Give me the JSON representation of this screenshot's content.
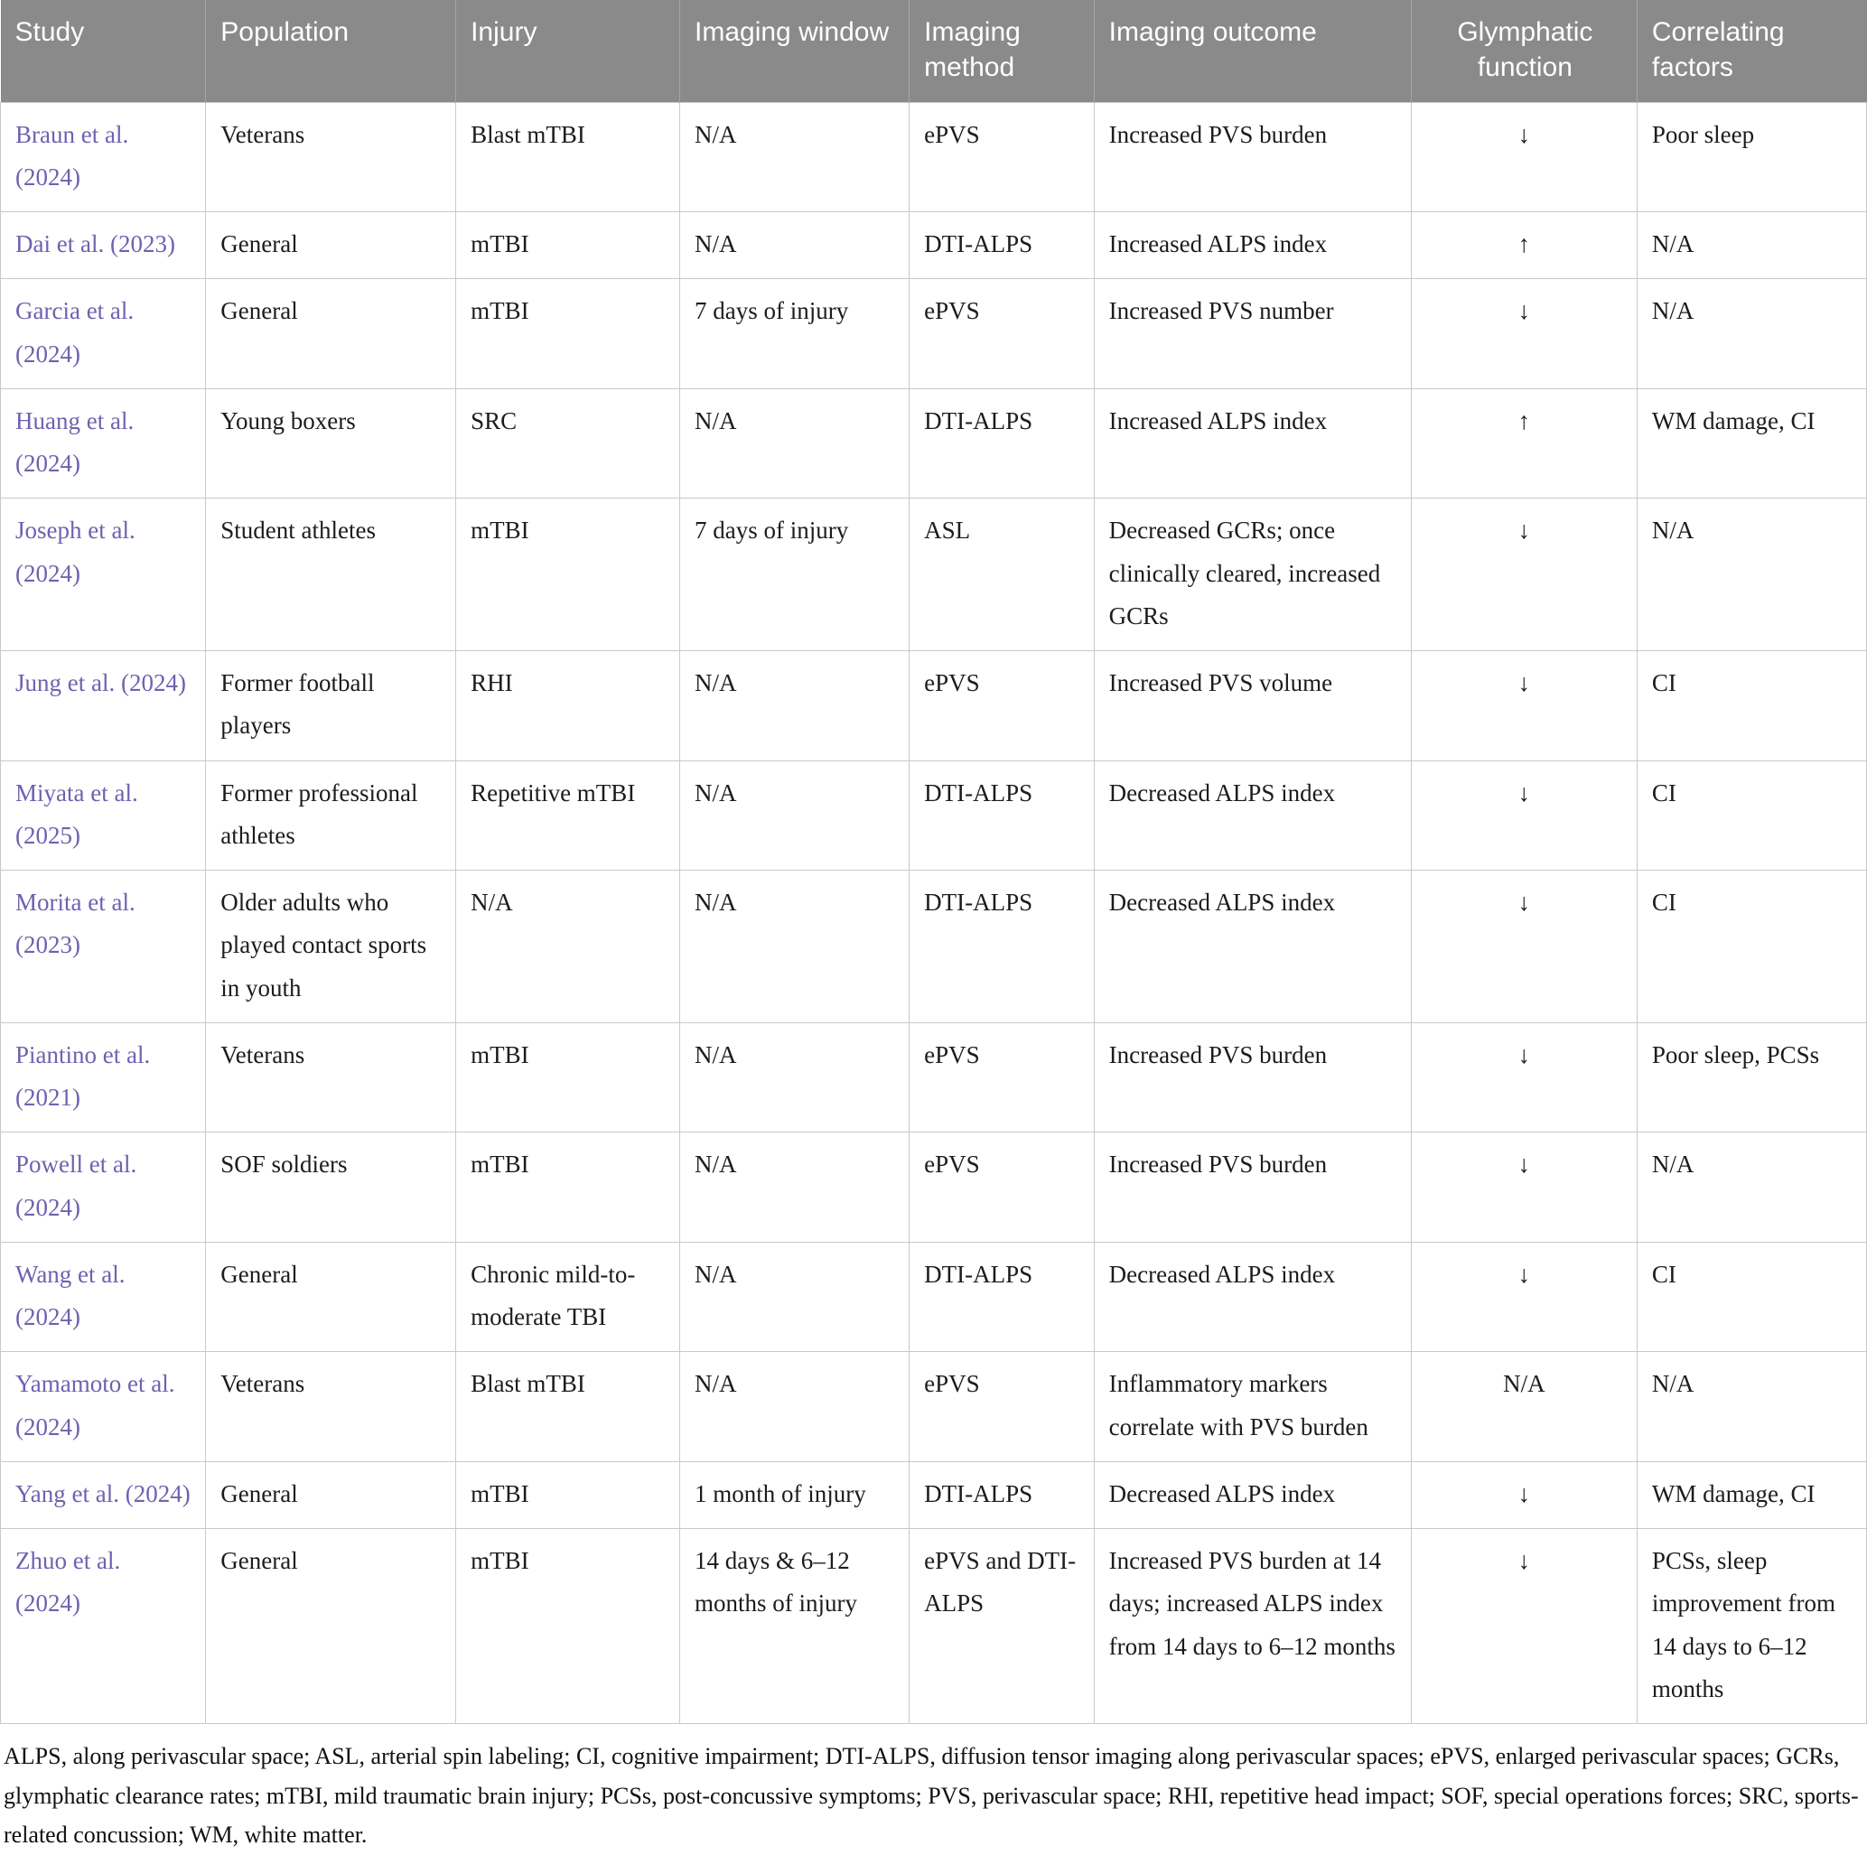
{
  "colors": {
    "header-bg": "#8a8a8a",
    "link": "#6e62b0",
    "grid": "#c9c9c9"
  },
  "table": {
    "columns": [
      {
        "key": "study",
        "label": "Study",
        "align": "left"
      },
      {
        "key": "population",
        "label": "Population",
        "align": "left"
      },
      {
        "key": "injury",
        "label": "Injury",
        "align": "left"
      },
      {
        "key": "imaging_window",
        "label": "Imaging window",
        "align": "left"
      },
      {
        "key": "imaging_method",
        "label": "Imaging method",
        "align": "left"
      },
      {
        "key": "imaging_outcome",
        "label": "Imaging outcome",
        "align": "left"
      },
      {
        "key": "glymphatic_function",
        "label": "Glymphatic function",
        "align": "center"
      },
      {
        "key": "correlating_factors",
        "label": "Correlating factors",
        "align": "left"
      }
    ],
    "rows": [
      {
        "study": "Braun et al. (2024)",
        "population": "Veterans",
        "injury": "Blast mTBI",
        "imaging_window": "N/A",
        "imaging_method": "ePVS",
        "imaging_outcome": "Increased PVS burden",
        "glymphatic_function": "↓",
        "correlating_factors": "Poor sleep"
      },
      {
        "study": "Dai et al. (2023)",
        "population": "General",
        "injury": "mTBI",
        "imaging_window": "N/A",
        "imaging_method": "DTI-ALPS",
        "imaging_outcome": "Increased ALPS index",
        "glymphatic_function": "↑",
        "correlating_factors": "N/A"
      },
      {
        "study": "Garcia et al. (2024)",
        "population": "General",
        "injury": "mTBI",
        "imaging_window": "7 days of injury",
        "imaging_method": "ePVS",
        "imaging_outcome": "Increased PVS number",
        "glymphatic_function": "↓",
        "correlating_factors": "N/A"
      },
      {
        "study": "Huang et al. (2024)",
        "population": "Young boxers",
        "injury": "SRC",
        "imaging_window": "N/A",
        "imaging_method": "DTI-ALPS",
        "imaging_outcome": "Increased ALPS index",
        "glymphatic_function": "↑",
        "correlating_factors": "WM damage, CI"
      },
      {
        "study": "Joseph et al. (2024)",
        "population": "Student athletes",
        "injury": "mTBI",
        "imaging_window": "7 days of injury",
        "imaging_method": "ASL",
        "imaging_outcome": "Decreased GCRs; once clinically cleared, increased GCRs",
        "glymphatic_function": "↓",
        "correlating_factors": "N/A"
      },
      {
        "study": "Jung et al. (2024)",
        "population": "Former football players",
        "injury": "RHI",
        "imaging_window": "N/A",
        "imaging_method": "ePVS",
        "imaging_outcome": "Increased PVS volume",
        "glymphatic_function": "↓",
        "correlating_factors": "CI"
      },
      {
        "study": "Miyata et al. (2025)",
        "population": "Former professional athletes",
        "injury": "Repetitive mTBI",
        "imaging_window": "N/A",
        "imaging_method": "DTI-ALPS",
        "imaging_outcome": "Decreased ALPS index",
        "glymphatic_function": "↓",
        "correlating_factors": "CI"
      },
      {
        "study": "Morita et al. (2023)",
        "population": "Older adults who played contact sports in youth",
        "injury": "N/A",
        "imaging_window": "N/A",
        "imaging_method": "DTI-ALPS",
        "imaging_outcome": "Decreased ALPS index",
        "glymphatic_function": "↓",
        "correlating_factors": "CI"
      },
      {
        "study": "Piantino et al. (2021)",
        "population": "Veterans",
        "injury": "mTBI",
        "imaging_window": "N/A",
        "imaging_method": "ePVS",
        "imaging_outcome": "Increased PVS burden",
        "glymphatic_function": "↓",
        "correlating_factors": "Poor sleep, PCSs"
      },
      {
        "study": "Powell et al. (2024)",
        "population": "SOF soldiers",
        "injury": "mTBI",
        "imaging_window": "N/A",
        "imaging_method": "ePVS",
        "imaging_outcome": "Increased PVS burden",
        "glymphatic_function": "↓",
        "correlating_factors": "N/A"
      },
      {
        "study": "Wang et al. (2024)",
        "population": "General",
        "injury": "Chronic mild-to-moderate TBI",
        "imaging_window": "N/A",
        "imaging_method": "DTI-ALPS",
        "imaging_outcome": "Decreased ALPS index",
        "glymphatic_function": "↓",
        "correlating_factors": "CI"
      },
      {
        "study": "Yamamoto et al. (2024)",
        "population": "Veterans",
        "injury": "Blast mTBI",
        "imaging_window": "N/A",
        "imaging_method": "ePVS",
        "imaging_outcome": "Inflammatory markers correlate with PVS burden",
        "glymphatic_function": "N/A",
        "correlating_factors": "N/A"
      },
      {
        "study": "Yang et al. (2024)",
        "population": "General",
        "injury": "mTBI",
        "imaging_window": "1 month of injury",
        "imaging_method": "DTI-ALPS",
        "imaging_outcome": "Decreased ALPS index",
        "glymphatic_function": "↓",
        "correlating_factors": "WM damage, CI"
      },
      {
        "study": "Zhuo et al. (2024)",
        "population": "General",
        "injury": "mTBI",
        "imaging_window": "14 days & 6–12 months of injury",
        "imaging_method": "ePVS and DTI-ALPS",
        "imaging_outcome": "Increased PVS burden at 14 days; increased ALPS index from 14 days to 6–12 months",
        "glymphatic_function": "↓",
        "correlating_factors": "PCSs, sleep improvement from 14 days to 6–12 months"
      }
    ]
  },
  "footnote": "ALPS, along perivascular space; ASL, arterial spin labeling; CI, cognitive impairment; DTI-ALPS, diffusion tensor imaging along perivascular spaces; ePVS, enlarged perivascular spaces; GCRs, glymphatic clearance rates; mTBI, mild traumatic brain injury; PCSs, post-concussive symptoms; PVS, perivascular space; RHI, repetitive head impact; SOF, special operations forces; SRC, sports-related concussion; WM, white matter."
}
